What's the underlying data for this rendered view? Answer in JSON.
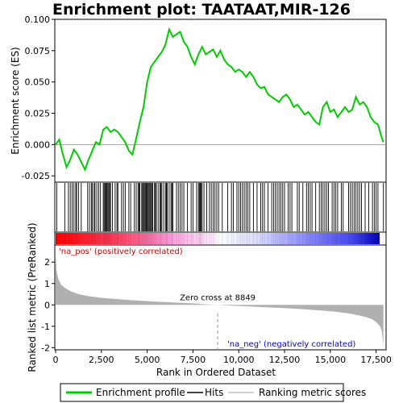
{
  "chart_data": {
    "type": "line",
    "title": "Enrichment plot: TAATAAT,MIR-126",
    "top_panel": {
      "ylabel": "Enrichment score (ES)",
      "ylim": [
        -0.03,
        0.1
      ],
      "yticks": [
        -0.025,
        0.0,
        0.025,
        0.05,
        0.075,
        0.1
      ],
      "ytick_labels": [
        "-0.025",
        "0.000",
        "0.025",
        "0.050",
        "0.075",
        "0.100"
      ],
      "series": [
        {
          "name": "Enrichment profile",
          "color": "#00cc00",
          "x": [
            0,
            200,
            400,
            600,
            800,
            1000,
            1200,
            1400,
            1600,
            1800,
            2000,
            2200,
            2400,
            2600,
            2800,
            3000,
            3200,
            3400,
            3600,
            3800,
            4000,
            4200,
            4400,
            4600,
            4800,
            5000,
            5200,
            5400,
            5600,
            5800,
            6000,
            6200,
            6400,
            6600,
            6800,
            7000,
            7200,
            7400,
            7600,
            7800,
            8000,
            8200,
            8400,
            8600,
            8800,
            9000,
            9200,
            9400,
            9600,
            9800,
            10000,
            10200,
            10400,
            10600,
            10800,
            11000,
            11200,
            11400,
            11600,
            11800,
            12000,
            12200,
            12400,
            12600,
            12800,
            13000,
            13200,
            13400,
            13600,
            13800,
            14000,
            14200,
            14400,
            14600,
            14800,
            15000,
            15200,
            15400,
            15600,
            15800,
            16000,
            16200,
            16400,
            16600,
            16800,
            17000,
            17200,
            17400,
            17600,
            17800,
            17900
          ],
          "y": [
            0.0,
            0.004,
            -0.008,
            -0.018,
            -0.012,
            -0.004,
            -0.008,
            -0.014,
            -0.02,
            -0.012,
            -0.005,
            0.002,
            0.0,
            0.012,
            0.014,
            0.01,
            0.012,
            0.01,
            0.006,
            0.002,
            -0.005,
            -0.008,
            0.005,
            0.018,
            0.03,
            0.05,
            0.062,
            0.066,
            0.07,
            0.074,
            0.08,
            0.092,
            0.086,
            0.088,
            0.09,
            0.082,
            0.078,
            0.07,
            0.064,
            0.072,
            0.078,
            0.072,
            0.074,
            0.076,
            0.07,
            0.075,
            0.068,
            0.064,
            0.062,
            0.058,
            0.06,
            0.058,
            0.054,
            0.058,
            0.054,
            0.048,
            0.045,
            0.046,
            0.04,
            0.038,
            0.036,
            0.034,
            0.038,
            0.04,
            0.036,
            0.03,
            0.032,
            0.028,
            0.024,
            0.026,
            0.022,
            0.018,
            0.016,
            0.03,
            0.034,
            0.026,
            0.028,
            0.022,
            0.026,
            0.03,
            0.026,
            0.028,
            0.038,
            0.032,
            0.034,
            0.03,
            0.022,
            0.018,
            0.016,
            0.006,
            0.002
          ]
        }
      ]
    },
    "hits_panel": {
      "hit_positions": [
        60,
        500,
        700,
        800,
        900,
        1000,
        1100,
        1150,
        1250,
        1400,
        1750,
        1850,
        1950,
        2000,
        2100,
        2150,
        2250,
        2350,
        2450,
        2600,
        2650,
        2700,
        2750,
        2800,
        2850,
        2900,
        2950,
        3000,
        3100,
        3250,
        3350,
        3400,
        3600,
        3700,
        3800,
        4000,
        4100,
        4300,
        4400,
        4500,
        4550,
        4600,
        4700,
        4750,
        4800,
        4850,
        4900,
        4950,
        5000,
        5050,
        5100,
        5150,
        5200,
        5250,
        5300,
        5400,
        5450,
        5500,
        5600,
        5700,
        5750,
        5800,
        5900,
        6000,
        6050,
        6100,
        6200,
        6300,
        6350,
        6400,
        6600,
        6700,
        6800,
        6900,
        7000,
        7200,
        7400,
        7500,
        7700,
        7800,
        7850,
        7900,
        7950,
        8000,
        8100,
        8250,
        8400,
        8500,
        8600,
        8700,
        8800,
        8900,
        9100,
        9400,
        9600,
        9700,
        9900,
        10000,
        10100,
        10200,
        10300,
        10400,
        10500,
        10600,
        10800,
        11000,
        11200,
        11300,
        11400,
        11600,
        11800,
        11900,
        12000,
        12100,
        12200,
        12300,
        12400,
        12500,
        12700,
        12800,
        12900,
        13200,
        13300,
        13500,
        13700,
        13800,
        13900,
        14000,
        14200,
        14400,
        14500,
        14600,
        14700,
        14800,
        14900,
        15100,
        15200,
        15300,
        15400,
        15600,
        15700,
        16000,
        16100,
        16200,
        16300,
        16400,
        16500,
        16600,
        16700,
        16900,
        17100,
        17300,
        17400,
        17500,
        17600,
        17900
      ],
      "gradient_colors": [
        "#ff0000",
        "#ff66bb",
        "#ffccff",
        "#ffffff",
        "#ccccff",
        "#6666ff",
        "#0000cc"
      ]
    },
    "bottom_panel": {
      "ylabel": "Ranked list metric (PreRanked)",
      "xlabel": "Rank in Ordered Dataset",
      "xlim": [
        0,
        18000
      ],
      "ylim": [
        -2.1,
        2.8
      ],
      "xticks": [
        0,
        2500,
        5000,
        7500,
        10000,
        12500,
        15000,
        17500
      ],
      "xtick_labels": [
        "0",
        "2,500",
        "5,000",
        "7,500",
        "10,000",
        "12,500",
        "15,000",
        "17,500"
      ],
      "yticks": [
        -2,
        -1,
        0,
        1,
        2
      ],
      "ytick_labels": [
        "-2",
        "-1",
        "0",
        "1",
        "2"
      ],
      "metric_x": [
        0,
        50,
        150,
        300,
        500,
        800,
        1200,
        1700,
        2500,
        3500,
        4500,
        5500,
        6500,
        7500,
        8200,
        8849,
        9500,
        10500,
        11500,
        12500,
        13500,
        14500,
        15300,
        16000,
        16500,
        17000,
        17300,
        17500,
        17700,
        17800,
        17850,
        17900
      ],
      "metric_y": [
        2.4,
        1.6,
        1.2,
        0.95,
        0.8,
        0.65,
        0.52,
        0.42,
        0.33,
        0.26,
        0.2,
        0.15,
        0.11,
        0.07,
        0.03,
        0.0,
        -0.03,
        -0.07,
        -0.11,
        -0.15,
        -0.2,
        -0.26,
        -0.32,
        -0.4,
        -0.48,
        -0.58,
        -0.68,
        -0.8,
        -0.98,
        -1.2,
        -1.5,
        -1.9
      ],
      "zero_cross": 8849,
      "zero_cross_label": "Zero cross at 8849",
      "pos_label": "'na_pos' (positively correlated)",
      "neg_label": "'na_neg' (negatively correlated)"
    },
    "legend": {
      "items": [
        {
          "label": "Enrichment profile",
          "color": "#00cc00"
        },
        {
          "label": "Hits",
          "color": "#000000"
        },
        {
          "label": "Ranking metric scores",
          "color": "#c0c0c0"
        }
      ]
    }
  }
}
